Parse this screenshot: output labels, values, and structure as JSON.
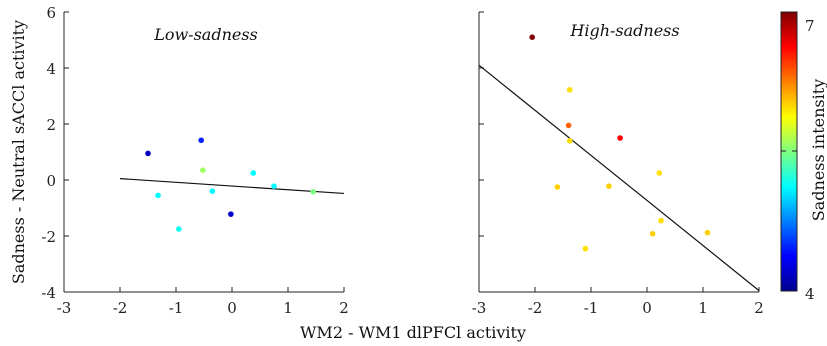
{
  "chart_data": [
    {
      "type": "scatter",
      "title": "Low-sadness",
      "xlabel": "WM2 - WM1 dlPFCl activity",
      "ylabel": "Sadness - Neutral sACCl activity",
      "xlim": [
        -3,
        2
      ],
      "ylim": [
        -4,
        6
      ],
      "x_ticks": [
        "-3",
        "-2",
        "-1",
        "0",
        "1",
        "2"
      ],
      "y_ticks": [
        "-4",
        "-2",
        "0",
        "2",
        "4",
        "6"
      ],
      "points": [
        {
          "x": -1.5,
          "y": 0.95,
          "intensity": 4.0
        },
        {
          "x": -1.32,
          "y": -0.55,
          "intensity": 5.0
        },
        {
          "x": -0.95,
          "y": -1.75,
          "intensity": 5.05
        },
        {
          "x": -0.55,
          "y": 1.42,
          "intensity": 4.3
        },
        {
          "x": -0.52,
          "y": 0.35,
          "intensity": 5.5
        },
        {
          "x": -0.35,
          "y": -0.4,
          "intensity": 5.0
        },
        {
          "x": -0.02,
          "y": -1.22,
          "intensity": 4.05
        },
        {
          "x": 0.38,
          "y": 0.25,
          "intensity": 5.0
        },
        {
          "x": 0.75,
          "y": -0.22,
          "intensity": 5.0
        },
        {
          "x": 1.45,
          "y": -0.42,
          "intensity": 5.4
        }
      ],
      "fit_line": {
        "x": [
          -2,
          2
        ],
        "y": [
          0.05,
          -0.48
        ]
      }
    },
    {
      "type": "scatter",
      "title": "High-sadness",
      "xlabel": "WM2 - WM1 dlPFCl activity",
      "xlim": [
        -3,
        2
      ],
      "ylim": [
        -4,
        6
      ],
      "x_ticks": [
        "-3",
        "-2",
        "-1",
        "0",
        "1",
        "2"
      ],
      "points": [
        {
          "x": -2.05,
          "y": 5.1,
          "intensity": 7.0
        },
        {
          "x": -1.38,
          "y": 3.22,
          "intensity": 5.9
        },
        {
          "x": -1.4,
          "y": 1.95,
          "intensity": 6.3
        },
        {
          "x": -1.38,
          "y": 1.4,
          "intensity": 5.9
        },
        {
          "x": -0.48,
          "y": 1.5,
          "intensity": 6.6
        },
        {
          "x": -1.6,
          "y": -0.25,
          "intensity": 5.95
        },
        {
          "x": -0.68,
          "y": -0.22,
          "intensity": 5.95
        },
        {
          "x": 0.22,
          "y": 0.25,
          "intensity": 5.9
        },
        {
          "x": -1.1,
          "y": -2.45,
          "intensity": 5.9
        },
        {
          "x": 0.25,
          "y": -1.45,
          "intensity": 5.9
        },
        {
          "x": 0.1,
          "y": -1.92,
          "intensity": 5.95
        },
        {
          "x": 1.08,
          "y": -1.88,
          "intensity": 5.95
        }
      ],
      "fit_line": {
        "x": [
          -3,
          2
        ],
        "y": [
          4.1,
          -3.95
        ]
      }
    }
  ],
  "colorbar": {
    "label": "Sadness intensity",
    "range": [
      4,
      7
    ],
    "ticks": [
      "7",
      "4"
    ],
    "colormap": "jet"
  },
  "colors": {
    "axis": "#222222",
    "fit_line": "#111111"
  }
}
